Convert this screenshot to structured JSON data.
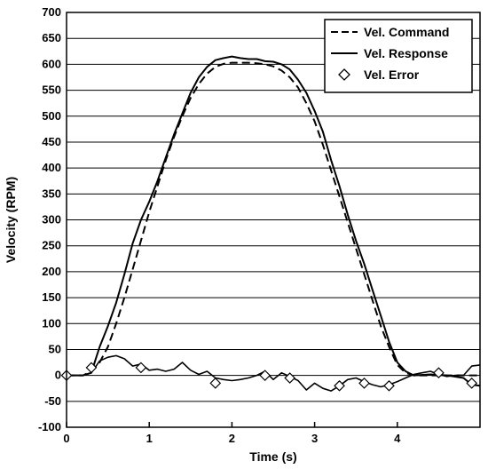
{
  "chart_data": {
    "type": "line",
    "title": "",
    "xlabel": "Time (s)",
    "ylabel": "Velocity (RPM)",
    "xlim": [
      0,
      5
    ],
    "ylim": [
      -100,
      700
    ],
    "xticks": [
      0,
      1,
      2,
      3,
      4
    ],
    "yticks": [
      -100,
      -50,
      0,
      50,
      100,
      150,
      200,
      250,
      300,
      350,
      400,
      450,
      500,
      550,
      600,
      650,
      700
    ],
    "grid": "horizontal",
    "legend_position": "top-right",
    "series": [
      {
        "name": "Vel. Command",
        "style": "dashed",
        "x": [
          0,
          0.2,
          0.3,
          0.4,
          0.5,
          0.6,
          0.7,
          0.8,
          0.9,
          1.0,
          1.1,
          1.2,
          1.3,
          1.4,
          1.5,
          1.6,
          1.7,
          1.8,
          1.9,
          2.0,
          2.1,
          2.2,
          2.3,
          2.4,
          2.5,
          2.6,
          2.7,
          2.8,
          2.9,
          3.0,
          3.1,
          3.2,
          3.3,
          3.4,
          3.5,
          3.6,
          3.7,
          3.8,
          3.9,
          4.0,
          4.1,
          4.2,
          4.5,
          5.0
        ],
        "y": [
          0,
          0,
          8,
          25,
          55,
          100,
          150,
          205,
          260,
          315,
          365,
          415,
          460,
          500,
          535,
          562,
          582,
          595,
          601,
          603,
          603,
          603,
          602,
          600,
          596,
          588,
          575,
          555,
          525,
          490,
          445,
          395,
          345,
          295,
          245,
          195,
          145,
          95,
          55,
          20,
          5,
          0,
          0,
          0
        ]
      },
      {
        "name": "Vel. Response",
        "style": "solid",
        "x": [
          0,
          0.2,
          0.3,
          0.35,
          0.4,
          0.5,
          0.6,
          0.7,
          0.8,
          0.9,
          1.0,
          1.1,
          1.2,
          1.3,
          1.4,
          1.5,
          1.6,
          1.7,
          1.8,
          1.9,
          2.0,
          2.1,
          2.2,
          2.3,
          2.4,
          2.5,
          2.6,
          2.7,
          2.8,
          2.9,
          3.0,
          3.1,
          3.2,
          3.3,
          3.4,
          3.5,
          3.6,
          3.7,
          3.8,
          3.9,
          4.0,
          4.1,
          4.2,
          4.4,
          4.6,
          4.8,
          4.9,
          5.0
        ],
        "y": [
          0,
          0,
          5,
          30,
          55,
          95,
          140,
          195,
          255,
          300,
          335,
          375,
          420,
          465,
          505,
          545,
          575,
          595,
          608,
          612,
          615,
          612,
          610,
          610,
          606,
          605,
          600,
          590,
          570,
          545,
          510,
          470,
          415,
          365,
          310,
          260,
          215,
          165,
          115,
          65,
          25,
          8,
          0,
          2,
          0,
          -5,
          -18,
          -20
        ]
      },
      {
        "name": "Vel. Error",
        "style": "noisy-line-diamond",
        "x": [
          0,
          0.2,
          0.3,
          0.4,
          0.5,
          0.6,
          0.7,
          0.8,
          0.9,
          1.0,
          1.1,
          1.2,
          1.3,
          1.4,
          1.5,
          1.6,
          1.7,
          1.8,
          1.9,
          2.0,
          2.1,
          2.2,
          2.3,
          2.4,
          2.5,
          2.6,
          2.7,
          2.8,
          2.9,
          3.0,
          3.1,
          3.2,
          3.3,
          3.4,
          3.5,
          3.6,
          3.7,
          3.8,
          3.9,
          4.0,
          4.1,
          4.2,
          4.3,
          4.4,
          4.5,
          4.6,
          4.7,
          4.8,
          4.9,
          5.0
        ],
        "y": [
          0,
          0,
          5,
          28,
          35,
          38,
          32,
          18,
          22,
          10,
          12,
          8,
          12,
          25,
          10,
          2,
          8,
          -5,
          -8,
          -10,
          -8,
          -5,
          0,
          8,
          -8,
          5,
          -2,
          -10,
          -28,
          -15,
          -25,
          -30,
          -20,
          -8,
          -5,
          -12,
          -18,
          -22,
          -18,
          -12,
          -5,
          2,
          5,
          8,
          2,
          -2,
          0,
          0,
          18,
          20
        ],
        "marker_x": [
          0,
          0.3,
          0.9,
          1.8,
          2.4,
          2.7,
          3.3,
          3.6,
          3.9,
          4.5,
          4.9
        ],
        "marker_y": [
          0,
          15,
          15,
          -15,
          0,
          -5,
          -20,
          -15,
          -20,
          5,
          -15
        ]
      }
    ]
  }
}
